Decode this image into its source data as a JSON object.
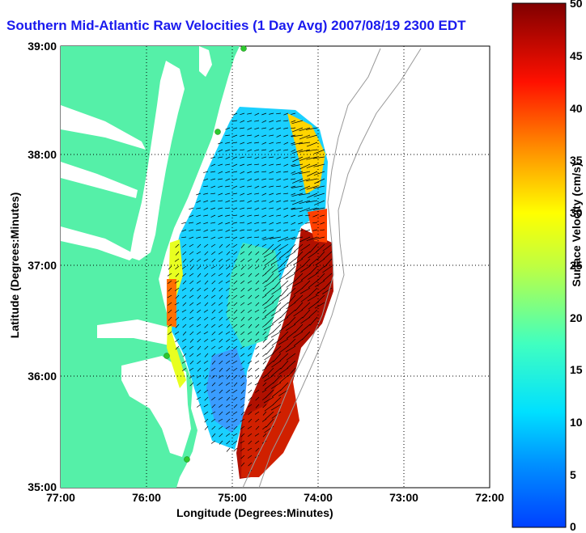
{
  "title": "Southern Mid-Atlantic Raw Velocities (1 Day Avg) 2007/08/19 2300 EDT",
  "x_axis": {
    "label": "Longitude (Degrees:Minutes)",
    "ticks": [
      "77:00",
      "76:00",
      "75:00",
      "74:00",
      "73:00",
      "72:00"
    ]
  },
  "y_axis": {
    "label": "Latitude (Degrees:Minutes)",
    "ticks": [
      "39:00",
      "38:00",
      "37:00",
      "36:00",
      "35:00"
    ]
  },
  "colorbar": {
    "label": "Surface Velocity (cm/s)",
    "ticks": [
      "50",
      "45",
      "40",
      "35",
      "30",
      "25",
      "20",
      "15",
      "10",
      "5",
      "0"
    ],
    "range": [
      0,
      50
    ],
    "colormap": "jet"
  },
  "colors": {
    "land": "#55f0a8",
    "title": "#1a1aee",
    "station": "#2ec82e"
  },
  "grid": "dotted"
}
